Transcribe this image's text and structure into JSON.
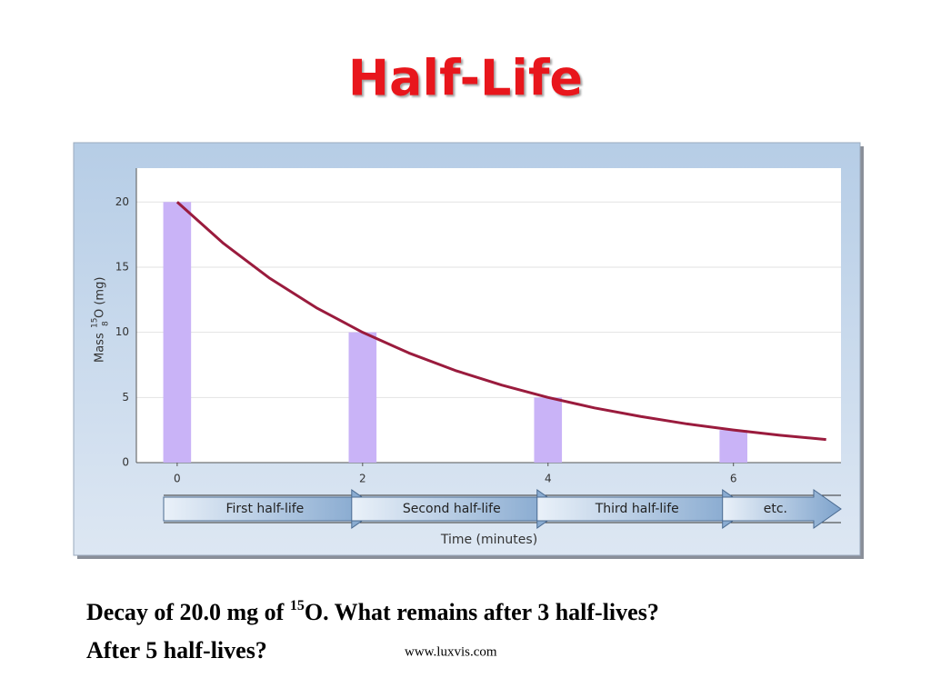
{
  "slide_title": "Half-Life",
  "chart_data": {
    "type": "bar",
    "y_label_parts": [
      "Mass",
      "15",
      "8",
      "O (mg)"
    ],
    "x_label": "Time (minutes)",
    "xlim": [
      -0.44,
      7.16
    ],
    "ylim": [
      0,
      22.6
    ],
    "xticks": [
      0,
      2,
      4,
      6
    ],
    "yticks": [
      0,
      5,
      10,
      15,
      20
    ],
    "grid": true,
    "series": [
      {
        "type": "bar",
        "color": "#c9b3f7",
        "x": [
          0,
          2,
          4,
          6
        ],
        "values": [
          20,
          10,
          5,
          2.5
        ]
      },
      {
        "type": "line",
        "color": "#9a1b3d",
        "x": [
          0,
          0.5,
          1,
          1.5,
          2,
          2.5,
          3,
          3.5,
          4,
          4.5,
          5,
          5.5,
          6,
          6.5,
          7
        ],
        "values": [
          20,
          16.82,
          14.14,
          11.89,
          10,
          8.41,
          7.07,
          5.95,
          5,
          4.2,
          3.54,
          2.97,
          2.5,
          2.1,
          1.77
        ]
      }
    ],
    "phases": [
      {
        "label": "First half-life",
        "start": 0,
        "end": 2
      },
      {
        "label": "Second half-life",
        "start": 2,
        "end": 4
      },
      {
        "label": "Third half-life",
        "start": 4,
        "end": 6
      },
      {
        "label": "etc.",
        "start": 6
      }
    ]
  },
  "question": {
    "parts": [
      "Decay of 20.0 mg of ",
      "15",
      "O. What remains after 3 half-lives?"
    ],
    "line2": "After 5 half-lives?"
  },
  "source": "www.luxvis.com"
}
